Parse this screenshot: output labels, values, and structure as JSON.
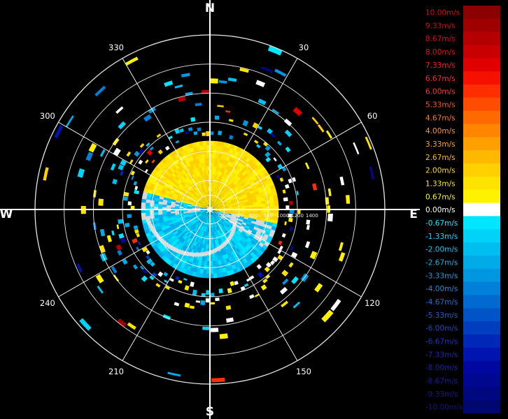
{
  "display": {
    "directions": {
      "n": "N",
      "e": "E",
      "s": "S",
      "w": "W"
    },
    "azimuth_labels": [
      {
        "label": "30",
        "deg": 30
      },
      {
        "label": "60",
        "deg": 60
      },
      {
        "label": "120",
        "deg": 120
      },
      {
        "label": "150",
        "deg": 150
      },
      {
        "label": "210",
        "deg": 210
      },
      {
        "label": "240",
        "deg": 240
      },
      {
        "label": "300",
        "deg": 300
      },
      {
        "label": "330",
        "deg": 330
      }
    ],
    "range_labels": [
      "200",
      "400",
      "600",
      "800",
      "1000",
      "1200",
      "1400"
    ],
    "range_ring_values": [
      200,
      400,
      600,
      800,
      1000,
      1200,
      1400,
      1600,
      1800,
      2000,
      2200,
      2400
    ],
    "max_range": 2400
  },
  "legend": {
    "entries": [
      {
        "label": "10.00m/s",
        "color": "#8b0000",
        "text_color": "#d21010"
      },
      {
        "label": "9.33m/s",
        "color": "#9e0000",
        "text_color": "#d21010"
      },
      {
        "label": "8.67m/s",
        "color": "#b40000",
        "text_color": "#d21010"
      },
      {
        "label": "8.00m/s",
        "color": "#c80000",
        "text_color": "#e01010"
      },
      {
        "label": "7.33m/s",
        "color": "#e00000",
        "text_color": "#ff1a1a"
      },
      {
        "label": "6.67m/s",
        "color": "#f51000",
        "text_color": "#ff2a1a"
      },
      {
        "label": "6.00m/s",
        "color": "#ff2e00",
        "text_color": "#ff3a1a"
      },
      {
        "label": "5.33m/s",
        "color": "#ff4d00",
        "text_color": "#ff5a1a"
      },
      {
        "label": "4.67m/s",
        "color": "#ff6a00",
        "text_color": "#ff7a1a"
      },
      {
        "label": "4.00m/s",
        "color": "#ff8500",
        "text_color": "#ff9020"
      },
      {
        "label": "3.33m/s",
        "color": "#ff9f00",
        "text_color": "#ffa520"
      },
      {
        "label": "2.67m/s",
        "color": "#ffb800",
        "text_color": "#ffbd20"
      },
      {
        "label": "2.00m/s",
        "color": "#ffd000",
        "text_color": "#ffd420"
      },
      {
        "label": "1.33m/s",
        "color": "#ffe300",
        "text_color": "#ffe520"
      },
      {
        "label": "0.67m/s",
        "color": "#fff200",
        "text_color": "#fff530"
      },
      {
        "label": "0.00m/s",
        "color": "#ffffff",
        "text_color": "#ffffff"
      },
      {
        "label": "-0.67m/s",
        "color": "#00e6ff",
        "text_color": "#20e8ff"
      },
      {
        "label": "-1.33m/s",
        "color": "#00d2f8",
        "text_color": "#20d8ff"
      },
      {
        "label": "-2.00m/s",
        "color": "#00bff0",
        "text_color": "#20c4f4"
      },
      {
        "label": "-2.67m/s",
        "color": "#00abe8",
        "text_color": "#20b0ec"
      },
      {
        "label": "-3.33m/s",
        "color": "#0096e0",
        "text_color": "#209ce4"
      },
      {
        "label": "-4.00m/s",
        "color": "#0080d8",
        "text_color": "#2088dc"
      },
      {
        "label": "-4.67m/s",
        "color": "#006ad0",
        "text_color": "#2070d4"
      },
      {
        "label": "-5.33m/s",
        "color": "#0054c8",
        "text_color": "#2060cc"
      },
      {
        "label": "-6.00m/s",
        "color": "#003ec0",
        "text_color": "#2048c4"
      },
      {
        "label": "-6.67m/s",
        "color": "#0028b8",
        "text_color": "#2034bc"
      },
      {
        "label": "-7.33m/s",
        "color": "#0014b0",
        "text_color": "#2028b0"
      },
      {
        "label": "-8.00m/s",
        "color": "#0008a0",
        "text_color": "#1c22a4"
      },
      {
        "label": "-8.67m/s",
        "color": "#000890",
        "text_color": "#181e98"
      },
      {
        "label": "-9.33m/s",
        "color": "#000880",
        "text_color": "#141a8c"
      },
      {
        "label": "-10.00m/s",
        "color": "#000870",
        "text_color": "#101680"
      }
    ]
  }
}
